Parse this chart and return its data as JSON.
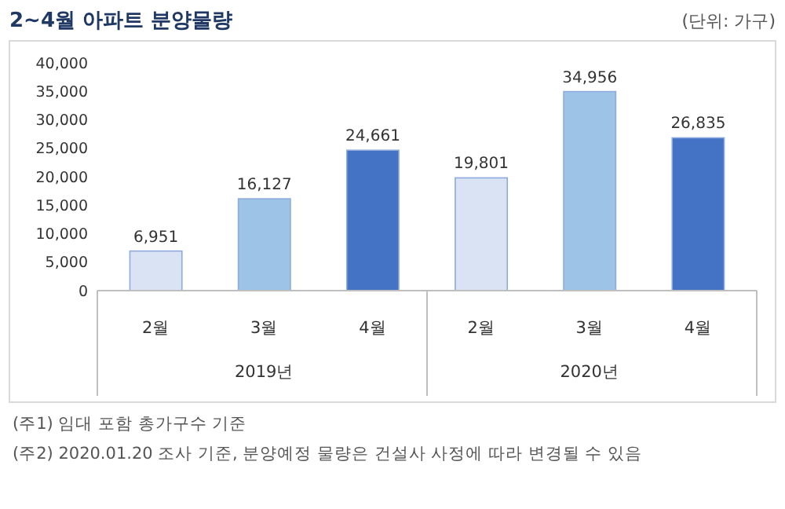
{
  "chart_data": {
    "type": "bar",
    "title": "2~4월 아파트 분양물량",
    "categories": [
      "2월",
      "3월",
      "4월",
      "2월",
      "3월",
      "4월"
    ],
    "values": [
      6951,
      16127,
      24661,
      19801,
      34956,
      26835
    ],
    "colors": [
      "#dae3f3",
      "#9dc3e6",
      "#4472c4",
      "#dae3f3",
      "#9dc3e6",
      "#4472c4"
    ],
    "value_labels": [
      "6,951",
      "16,127",
      "24,661",
      "19,801",
      "34,956",
      "26,835"
    ],
    "ylim": [
      0,
      40000
    ],
    "yticks": [
      0,
      {
        "value": 5000,
        "label": "5,000"
      },
      {
        "value": 10000,
        "label": "10,000"
      },
      {
        "value": 15000,
        "label": "15,000"
      },
      {
        "value": 20000,
        "label": "20,000"
      },
      {
        "value": 25000,
        "label": "25,000"
      },
      {
        "value": 30000,
        "label": "30,000"
      },
      {
        "value": 35000,
        "label": "35,000"
      },
      {
        "value": 40000,
        "label": "40,000"
      }
    ],
    "grid": false,
    "annotations": [
      "(단위: 가구)",
      "2019년",
      "2020년",
      "(주1) 임대 포함 총가구수 기준",
      "(주2) 2020.01.20 조사 기준, 분양예정 물량은 건설사 사정에 따라 변경될 수 있음"
    ]
  }
}
